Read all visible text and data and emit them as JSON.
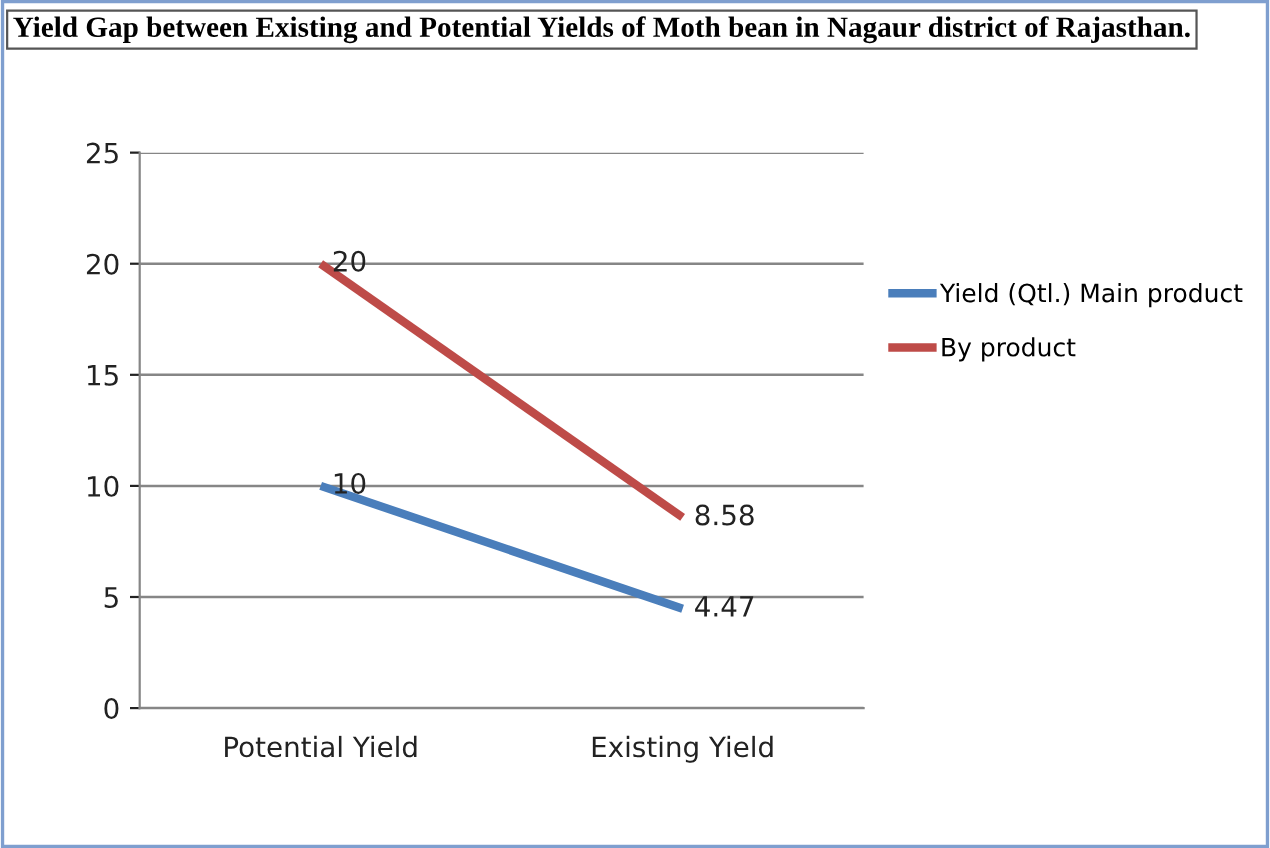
{
  "chart_data": {
    "type": "line",
    "title": "Yield Gap between Existing and Potential Yields of Moth bean in Nagaur district of Rajasthan.",
    "categories": [
      "Potential Yield",
      "Existing Yield"
    ],
    "series": [
      {
        "name": "Yield (Qtl.) Main product",
        "color": "#4a7ebb",
        "values": [
          10,
          4.47
        ]
      },
      {
        "name": "By product",
        "color": "#be4b48",
        "values": [
          20,
          8.58
        ]
      }
    ],
    "ylim": [
      0,
      25
    ],
    "yticks": [
      0,
      5,
      10,
      15,
      20,
      25
    ],
    "grid": "y",
    "legend": "right",
    "data_labels": true,
    "marker": "none",
    "line_style": "solid"
  }
}
